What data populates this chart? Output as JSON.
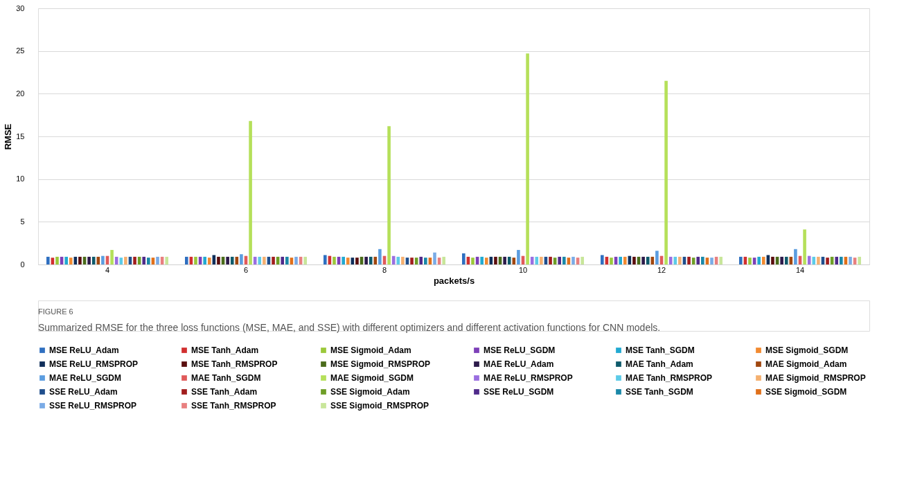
{
  "chart_data": {
    "type": "bar",
    "xlabel": "packets/s",
    "ylabel": "RMSE",
    "categories": [
      "4",
      "6",
      "8",
      "10",
      "12",
      "14"
    ],
    "ylim": [
      0,
      30
    ],
    "yticks": [
      0,
      5,
      10,
      15,
      20,
      25,
      30
    ],
    "grid": "y",
    "legend": "bottom",
    "series": [
      {
        "name": "MSE ReLU_Adam",
        "color": "#2f6fc0",
        "values": [
          0.9,
          0.9,
          1.1,
          1.3,
          1.1,
          0.9
        ]
      },
      {
        "name": "MSE Tanh_Adam",
        "color": "#d12f2f",
        "values": [
          0.8,
          0.9,
          1.0,
          0.9,
          0.9,
          0.9
        ]
      },
      {
        "name": "MSE Sigmoid_Adam",
        "color": "#9bc83a",
        "values": [
          0.9,
          0.9,
          0.9,
          0.8,
          0.8,
          0.8
        ]
      },
      {
        "name": "MSE ReLU_SGDM",
        "color": "#7d3fb8",
        "values": [
          0.9,
          0.9,
          0.9,
          0.9,
          0.9,
          0.8
        ]
      },
      {
        "name": "MSE Tanh_SGDM",
        "color": "#21a9d1",
        "values": [
          0.9,
          0.9,
          0.9,
          0.9,
          0.9,
          0.9
        ]
      },
      {
        "name": "MSE Sigmoid_SGDM",
        "color": "#f28a30",
        "values": [
          0.8,
          0.8,
          0.8,
          0.8,
          0.9,
          0.9
        ]
      },
      {
        "name": "MSE ReLU_RMSPROP",
        "color": "#0f2e5a",
        "values": [
          0.9,
          1.1,
          0.8,
          0.9,
          1.0,
          1.1
        ]
      },
      {
        "name": "MSE Tanh_RMSPROP",
        "color": "#5a0e0e",
        "values": [
          0.9,
          0.9,
          0.8,
          0.9,
          0.9,
          0.9
        ]
      },
      {
        "name": "MSE Sigmoid_RMSPROP",
        "color": "#4a6b1a",
        "values": [
          0.9,
          0.9,
          0.9,
          0.9,
          0.9,
          0.9
        ]
      },
      {
        "name": "MAE ReLU_Adam",
        "color": "#2c1a4a",
        "values": [
          0.9,
          0.9,
          0.9,
          0.9,
          0.9,
          0.9
        ]
      },
      {
        "name": "MAE Tanh_Adam",
        "color": "#0e5a6b",
        "values": [
          0.9,
          0.9,
          0.9,
          0.9,
          0.9,
          0.9
        ]
      },
      {
        "name": "MAE Sigmoid_Adam",
        "color": "#a0470f",
        "values": [
          0.9,
          0.9,
          0.9,
          0.8,
          0.9,
          0.9
        ]
      },
      {
        "name": "MAE ReLU_SGDM",
        "color": "#5b9de0",
        "values": [
          1.0,
          1.2,
          1.8,
          1.7,
          1.6,
          1.8
        ]
      },
      {
        "name": "MAE Tanh_SGDM",
        "color": "#e05a5a",
        "values": [
          1.0,
          1.0,
          1.0,
          1.0,
          1.0,
          1.0
        ]
      },
      {
        "name": "MAE Sigmoid_SGDM",
        "color": "#b5e05a",
        "values": [
          1.7,
          16.8,
          16.2,
          24.7,
          21.5,
          4.1
        ]
      },
      {
        "name": "MAE ReLU_RMSPROP",
        "color": "#9a6ee0",
        "values": [
          0.9,
          0.9,
          1.0,
          0.9,
          0.9,
          1.0
        ]
      },
      {
        "name": "MAE Tanh_RMSPROP",
        "color": "#5ccbe8",
        "values": [
          0.8,
          0.9,
          0.9,
          0.9,
          0.9,
          0.9
        ]
      },
      {
        "name": "MAE Sigmoid_RMSPROP",
        "color": "#f5b070",
        "values": [
          0.9,
          0.9,
          0.9,
          0.9,
          0.9,
          0.9
        ]
      },
      {
        "name": "SSE ReLU_Adam",
        "color": "#1f4e8c",
        "values": [
          0.9,
          0.9,
          0.8,
          0.9,
          0.9,
          0.9
        ]
      },
      {
        "name": "SSE Tanh_Adam",
        "color": "#a11d1d",
        "values": [
          0.9,
          0.9,
          0.8,
          0.9,
          0.9,
          0.8
        ]
      },
      {
        "name": "SSE Sigmoid_Adam",
        "color": "#6e9e27",
        "values": [
          0.9,
          0.9,
          0.8,
          0.8,
          0.8,
          0.9
        ]
      },
      {
        "name": "SSE ReLU_SGDM",
        "color": "#4f2a8a",
        "values": [
          0.9,
          0.9,
          0.9,
          0.9,
          0.9,
          0.9
        ]
      },
      {
        "name": "SSE Tanh_SGDM",
        "color": "#1a88a8",
        "values": [
          0.8,
          0.9,
          0.8,
          0.9,
          0.9,
          0.9
        ]
      },
      {
        "name": "SSE Sigmoid_SGDM",
        "color": "#e0701a",
        "values": [
          0.8,
          0.8,
          0.8,
          0.8,
          0.8,
          0.9
        ]
      },
      {
        "name": "SSE ReLU_RMSPROP",
        "color": "#7aabe6",
        "values": [
          0.9,
          0.9,
          1.4,
          0.9,
          0.8,
          0.9
        ]
      },
      {
        "name": "SSE Tanh_RMSPROP",
        "color": "#e87f7f",
        "values": [
          0.9,
          0.9,
          0.8,
          0.8,
          0.9,
          0.8
        ]
      },
      {
        "name": "SSE Sigmoid_RMSPROP",
        "color": "#c8e69a",
        "values": [
          0.9,
          0.9,
          0.9,
          0.9,
          0.9,
          0.9
        ]
      }
    ],
    "annotations": [
      "FIGURE 6",
      "Summarized RMSE for the three loss functions (MSE, MAE, and SSE) with different optimizers and different activation functions for CNN models."
    ]
  }
}
